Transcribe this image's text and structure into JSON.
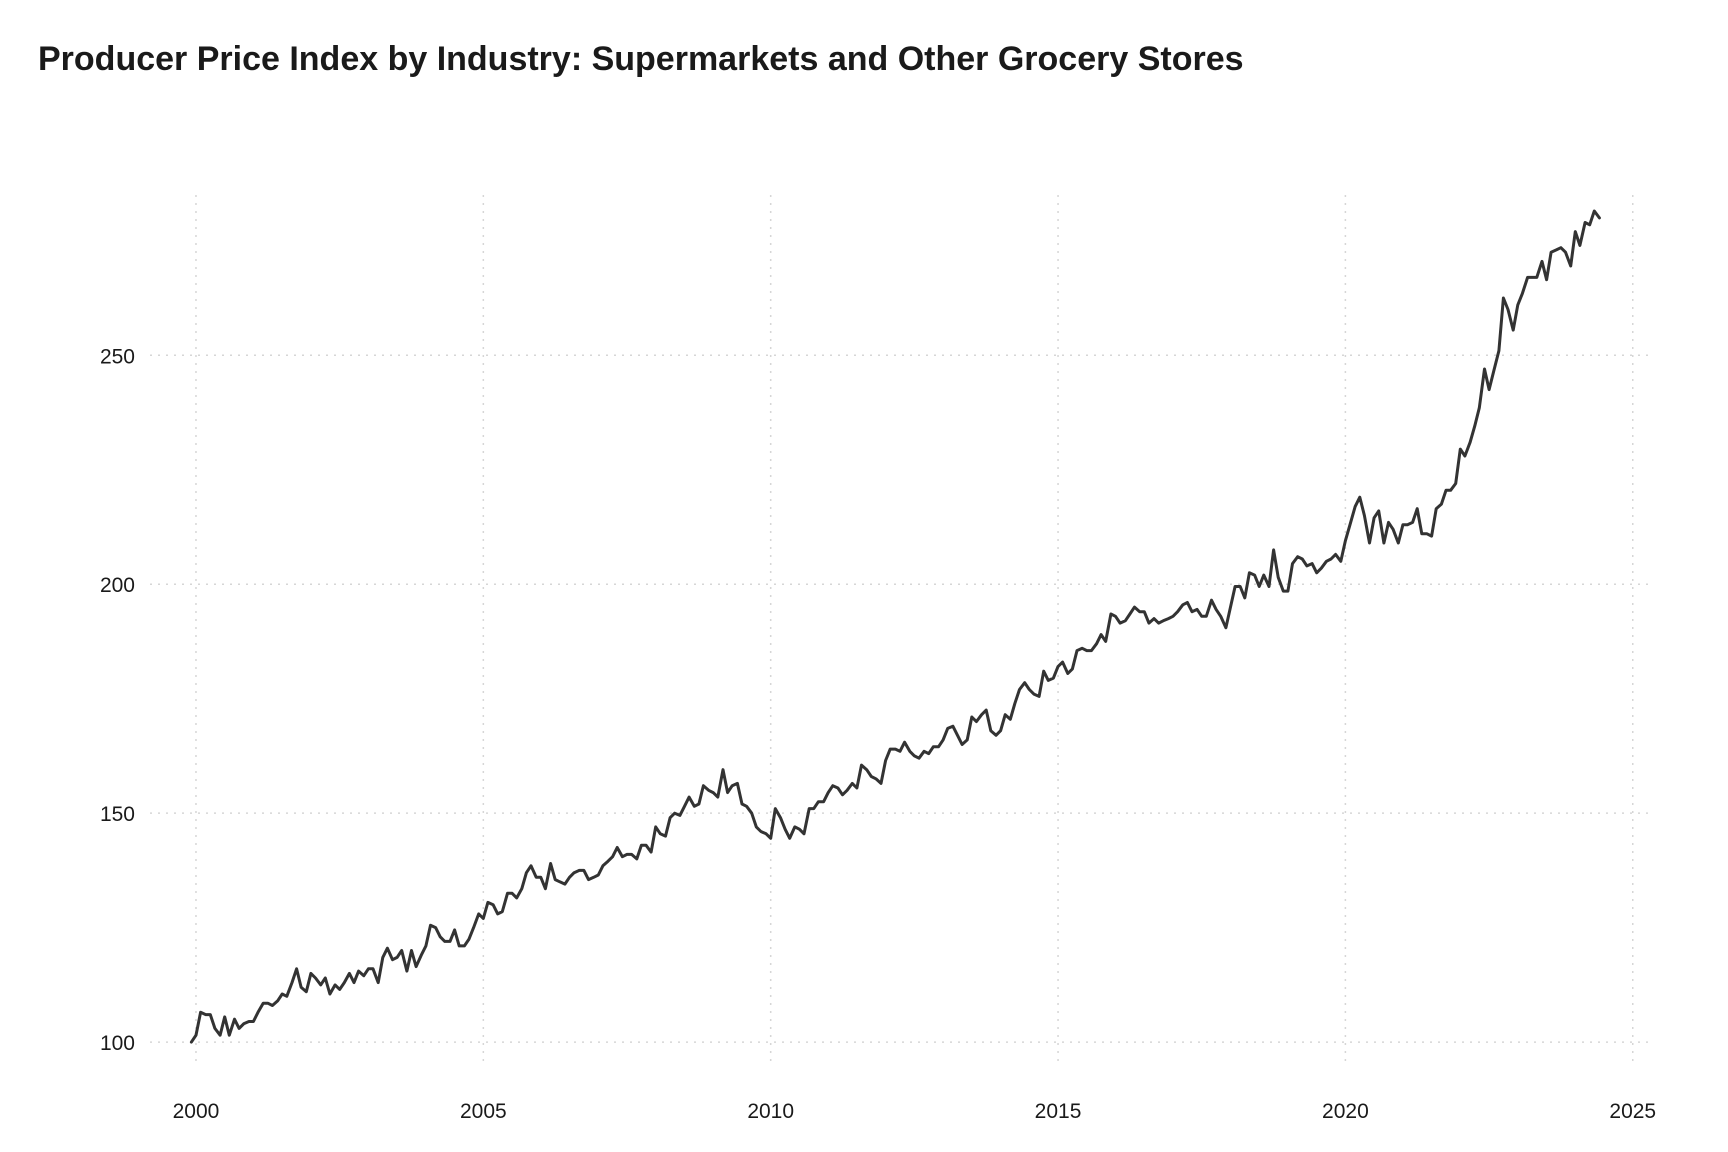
{
  "chart_data": {
    "type": "line",
    "title": "Producer Price Index by Industry: Supermarkets and Other Grocery Stores",
    "xlabel": "",
    "ylabel": "",
    "xlim": [
      1999.2,
      2025.3
    ],
    "ylim": [
      95,
      285
    ],
    "x_ticks": [
      2000,
      2005,
      2010,
      2015,
      2020,
      2025
    ],
    "x_tick_labels": [
      "2000",
      "2005",
      "2010",
      "2015",
      "2020",
      "2025"
    ],
    "y_ticks": [
      100,
      150,
      200,
      250
    ],
    "y_tick_labels": [
      "100",
      "150",
      "200",
      "250"
    ],
    "grid": true,
    "grid_style": "dotted",
    "line_color": "#333333",
    "series": [
      {
        "points": [
          [
            1999.92,
            100.0
          ],
          [
            2000.0,
            101.5
          ],
          [
            2000.08,
            106.5
          ],
          [
            2000.17,
            106.0
          ],
          [
            2000.25,
            106.0
          ],
          [
            2000.33,
            103.0
          ],
          [
            2000.42,
            101.5
          ],
          [
            2000.5,
            105.5
          ],
          [
            2000.58,
            101.5
          ],
          [
            2000.67,
            105.0
          ],
          [
            2000.75,
            103.0
          ],
          [
            2000.83,
            104.0
          ],
          [
            2000.92,
            104.5
          ],
          [
            2001.0,
            104.5
          ],
          [
            2001.08,
            106.5
          ],
          [
            2001.17,
            108.5
          ],
          [
            2001.25,
            108.5
          ],
          [
            2001.33,
            108.0
          ],
          [
            2001.42,
            109.0
          ],
          [
            2001.5,
            110.5
          ],
          [
            2001.58,
            110.0
          ],
          [
            2001.67,
            113.0
          ],
          [
            2001.75,
            116.0
          ],
          [
            2001.83,
            112.0
          ],
          [
            2001.92,
            111.0
          ],
          [
            2002.0,
            115.0
          ],
          [
            2002.08,
            114.0
          ],
          [
            2002.17,
            112.5
          ],
          [
            2002.25,
            114.0
          ],
          [
            2002.33,
            110.5
          ],
          [
            2002.42,
            112.5
          ],
          [
            2002.5,
            111.5
          ],
          [
            2002.58,
            113.0
          ],
          [
            2002.67,
            115.0
          ],
          [
            2002.75,
            113.0
          ],
          [
            2002.83,
            115.5
          ],
          [
            2002.92,
            114.5
          ],
          [
            2003.0,
            116.0
          ],
          [
            2003.08,
            116.0
          ],
          [
            2003.17,
            113.0
          ],
          [
            2003.25,
            118.5
          ],
          [
            2003.33,
            120.5
          ],
          [
            2003.42,
            118.0
          ],
          [
            2003.5,
            118.5
          ],
          [
            2003.58,
            120.0
          ],
          [
            2003.67,
            115.5
          ],
          [
            2003.75,
            120.0
          ],
          [
            2003.83,
            116.5
          ],
          [
            2003.92,
            119.0
          ],
          [
            2004.0,
            121.0
          ],
          [
            2004.08,
            125.5
          ],
          [
            2004.17,
            125.0
          ],
          [
            2004.25,
            123.0
          ],
          [
            2004.33,
            122.0
          ],
          [
            2004.42,
            122.0
          ],
          [
            2004.5,
            124.5
          ],
          [
            2004.58,
            121.0
          ],
          [
            2004.67,
            121.0
          ],
          [
            2004.75,
            122.5
          ],
          [
            2004.83,
            125.0
          ],
          [
            2004.92,
            128.0
          ],
          [
            2005.0,
            127.0
          ],
          [
            2005.08,
            130.5
          ],
          [
            2005.17,
            130.0
          ],
          [
            2005.25,
            128.0
          ],
          [
            2005.33,
            128.5
          ],
          [
            2005.42,
            132.5
          ],
          [
            2005.5,
            132.5
          ],
          [
            2005.58,
            131.5
          ],
          [
            2005.67,
            133.5
          ],
          [
            2005.75,
            137.0
          ],
          [
            2005.83,
            138.5
          ],
          [
            2005.92,
            136.0
          ],
          [
            2006.0,
            136.0
          ],
          [
            2006.08,
            133.5
          ],
          [
            2006.17,
            139.0
          ],
          [
            2006.25,
            135.5
          ],
          [
            2006.33,
            135.0
          ],
          [
            2006.42,
            134.5
          ],
          [
            2006.5,
            136.0
          ],
          [
            2006.58,
            137.0
          ],
          [
            2006.67,
            137.5
          ],
          [
            2006.75,
            137.5
          ],
          [
            2006.83,
            135.5
          ],
          [
            2006.92,
            136.0
          ],
          [
            2007.0,
            136.5
          ],
          [
            2007.08,
            138.5
          ],
          [
            2007.17,
            139.5
          ],
          [
            2007.25,
            140.5
          ],
          [
            2007.33,
            142.5
          ],
          [
            2007.42,
            140.5
          ],
          [
            2007.5,
            141.0
          ],
          [
            2007.58,
            141.0
          ],
          [
            2007.67,
            140.0
          ],
          [
            2007.75,
            143.0
          ],
          [
            2007.83,
            143.0
          ],
          [
            2007.92,
            141.5
          ],
          [
            2008.0,
            147.0
          ],
          [
            2008.08,
            145.5
          ],
          [
            2008.17,
            145.0
          ],
          [
            2008.25,
            149.0
          ],
          [
            2008.33,
            150.0
          ],
          [
            2008.42,
            149.5
          ],
          [
            2008.5,
            151.5
          ],
          [
            2008.58,
            153.5
          ],
          [
            2008.67,
            151.5
          ],
          [
            2008.75,
            152.0
          ],
          [
            2008.83,
            156.0
          ],
          [
            2008.92,
            155.0
          ],
          [
            2009.0,
            154.5
          ],
          [
            2009.08,
            153.5
          ],
          [
            2009.17,
            159.5
          ],
          [
            2009.25,
            154.5
          ],
          [
            2009.33,
            156.0
          ],
          [
            2009.42,
            156.5
          ],
          [
            2009.5,
            152.0
          ],
          [
            2009.58,
            151.5
          ],
          [
            2009.67,
            150.0
          ],
          [
            2009.75,
            147.0
          ],
          [
            2009.83,
            146.0
          ],
          [
            2009.92,
            145.5
          ],
          [
            2010.0,
            144.5
          ],
          [
            2010.08,
            151.0
          ],
          [
            2010.17,
            149.0
          ],
          [
            2010.25,
            146.5
          ],
          [
            2010.33,
            144.5
          ],
          [
            2010.42,
            147.0
          ],
          [
            2010.5,
            146.5
          ],
          [
            2010.58,
            145.5
          ],
          [
            2010.67,
            151.0
          ],
          [
            2010.75,
            151.0
          ],
          [
            2010.83,
            152.5
          ],
          [
            2010.92,
            152.5
          ],
          [
            2011.0,
            154.5
          ],
          [
            2011.08,
            156.0
          ],
          [
            2011.17,
            155.5
          ],
          [
            2011.25,
            154.0
          ],
          [
            2011.33,
            155.0
          ],
          [
            2011.42,
            156.5
          ],
          [
            2011.5,
            155.5
          ],
          [
            2011.58,
            160.5
          ],
          [
            2011.67,
            159.5
          ],
          [
            2011.75,
            158.0
          ],
          [
            2011.83,
            157.5
          ],
          [
            2011.92,
            156.5
          ],
          [
            2012.0,
            161.5
          ],
          [
            2012.08,
            164.0
          ],
          [
            2012.17,
            164.0
          ],
          [
            2012.25,
            163.5
          ],
          [
            2012.33,
            165.5
          ],
          [
            2012.42,
            163.5
          ],
          [
            2012.5,
            162.5
          ],
          [
            2012.58,
            162.0
          ],
          [
            2012.67,
            163.5
          ],
          [
            2012.75,
            163.0
          ],
          [
            2012.83,
            164.5
          ],
          [
            2012.92,
            164.5
          ],
          [
            2013.0,
            166.0
          ],
          [
            2013.08,
            168.5
          ],
          [
            2013.17,
            169.0
          ],
          [
            2013.25,
            167.0
          ],
          [
            2013.33,
            165.0
          ],
          [
            2013.42,
            166.0
          ],
          [
            2013.5,
            171.0
          ],
          [
            2013.58,
            170.0
          ],
          [
            2013.67,
            171.5
          ],
          [
            2013.75,
            172.5
          ],
          [
            2013.83,
            168.0
          ],
          [
            2013.92,
            167.0
          ],
          [
            2014.0,
            168.0
          ],
          [
            2014.08,
            171.5
          ],
          [
            2014.17,
            170.5
          ],
          [
            2014.25,
            174.0
          ],
          [
            2014.33,
            177.0
          ],
          [
            2014.42,
            178.5
          ],
          [
            2014.5,
            177.0
          ],
          [
            2014.58,
            176.0
          ],
          [
            2014.67,
            175.5
          ],
          [
            2014.75,
            181.0
          ],
          [
            2014.83,
            179.0
          ],
          [
            2014.92,
            179.5
          ],
          [
            2015.0,
            182.0
          ],
          [
            2015.08,
            183.0
          ],
          [
            2015.17,
            180.5
          ],
          [
            2015.25,
            181.5
          ],
          [
            2015.33,
            185.5
          ],
          [
            2015.42,
            186.0
          ],
          [
            2015.5,
            185.5
          ],
          [
            2015.58,
            185.5
          ],
          [
            2015.67,
            187.0
          ],
          [
            2015.75,
            189.0
          ],
          [
            2015.83,
            187.5
          ],
          [
            2015.92,
            193.5
          ],
          [
            2016.0,
            193.0
          ],
          [
            2016.08,
            191.5
          ],
          [
            2016.17,
            192.0
          ],
          [
            2016.25,
            193.5
          ],
          [
            2016.33,
            195.0
          ],
          [
            2016.42,
            194.0
          ],
          [
            2016.5,
            194.0
          ],
          [
            2016.58,
            191.5
          ],
          [
            2016.67,
            192.5
          ],
          [
            2016.75,
            191.5
          ],
          [
            2016.83,
            192.0
          ],
          [
            2016.92,
            192.5
          ],
          [
            2017.0,
            193.0
          ],
          [
            2017.08,
            194.0
          ],
          [
            2017.17,
            195.5
          ],
          [
            2017.25,
            196.0
          ],
          [
            2017.33,
            194.0
          ],
          [
            2017.42,
            194.5
          ],
          [
            2017.5,
            193.0
          ],
          [
            2017.58,
            193.0
          ],
          [
            2017.67,
            196.5
          ],
          [
            2017.75,
            194.5
          ],
          [
            2017.83,
            193.0
          ],
          [
            2017.92,
            190.5
          ],
          [
            2018.0,
            195.0
          ],
          [
            2018.08,
            199.5
          ],
          [
            2018.17,
            199.5
          ],
          [
            2018.25,
            197.0
          ],
          [
            2018.33,
            202.5
          ],
          [
            2018.42,
            202.0
          ],
          [
            2018.5,
            199.5
          ],
          [
            2018.58,
            202.0
          ],
          [
            2018.67,
            199.5
          ],
          [
            2018.75,
            207.5
          ],
          [
            2018.83,
            201.5
          ],
          [
            2018.92,
            198.5
          ],
          [
            2019.0,
            198.5
          ],
          [
            2019.08,
            204.5
          ],
          [
            2019.17,
            206.0
          ],
          [
            2019.25,
            205.5
          ],
          [
            2019.33,
            204.0
          ],
          [
            2019.42,
            204.5
          ],
          [
            2019.5,
            202.5
          ],
          [
            2019.58,
            203.5
          ],
          [
            2019.67,
            205.0
          ],
          [
            2019.75,
            205.5
          ],
          [
            2019.83,
            206.5
          ],
          [
            2019.92,
            205.0
          ],
          [
            2020.0,
            209.5
          ],
          [
            2020.08,
            213.0
          ],
          [
            2020.17,
            217.0
          ],
          [
            2020.25,
            219.0
          ],
          [
            2020.33,
            215.0
          ],
          [
            2020.42,
            209.0
          ],
          [
            2020.5,
            214.5
          ],
          [
            2020.58,
            216.0
          ],
          [
            2020.67,
            209.0
          ],
          [
            2020.75,
            213.5
          ],
          [
            2020.83,
            212.0
          ],
          [
            2020.92,
            209.0
          ],
          [
            2021.0,
            213.0
          ],
          [
            2021.08,
            213.0
          ],
          [
            2021.17,
            213.5
          ],
          [
            2021.25,
            216.5
          ],
          [
            2021.33,
            211.0
          ],
          [
            2021.42,
            211.0
          ],
          [
            2021.5,
            210.5
          ],
          [
            2021.58,
            216.5
          ],
          [
            2021.67,
            217.5
          ],
          [
            2021.75,
            220.5
          ],
          [
            2021.83,
            220.5
          ],
          [
            2021.92,
            222.0
          ],
          [
            2022.0,
            229.5
          ],
          [
            2022.08,
            228.0
          ],
          [
            2022.17,
            231.0
          ],
          [
            2022.25,
            234.5
          ],
          [
            2022.33,
            238.5
          ],
          [
            2022.42,
            247.0
          ],
          [
            2022.5,
            242.5
          ],
          [
            2022.58,
            246.5
          ],
          [
            2022.67,
            251.0
          ],
          [
            2022.75,
            262.5
          ],
          [
            2022.83,
            260.0
          ],
          [
            2022.92,
            255.5
          ],
          [
            2023.0,
            261.0
          ],
          [
            2023.08,
            263.5
          ],
          [
            2023.17,
            267.0
          ],
          [
            2023.25,
            267.0
          ],
          [
            2023.33,
            267.0
          ],
          [
            2023.42,
            270.5
          ],
          [
            2023.5,
            266.5
          ],
          [
            2023.58,
            272.5
          ],
          [
            2023.67,
            273.0
          ],
          [
            2023.75,
            273.5
          ],
          [
            2023.83,
            272.5
          ],
          [
            2023.92,
            269.5
          ],
          [
            2024.0,
            277.0
          ],
          [
            2024.08,
            274.0
          ],
          [
            2024.17,
            279.0
          ],
          [
            2024.25,
            278.5
          ],
          [
            2024.33,
            281.5
          ],
          [
            2024.42,
            280.0
          ]
        ]
      }
    ]
  }
}
